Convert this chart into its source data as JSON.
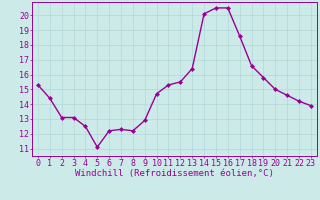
{
  "x": [
    0,
    1,
    2,
    3,
    4,
    5,
    6,
    7,
    8,
    9,
    10,
    11,
    12,
    13,
    14,
    15,
    16,
    17,
    18,
    19,
    20,
    21,
    22,
    23
  ],
  "y": [
    15.3,
    14.4,
    13.1,
    13.1,
    12.5,
    11.1,
    12.2,
    12.3,
    12.2,
    12.9,
    14.7,
    15.3,
    15.5,
    16.4,
    20.1,
    20.5,
    20.5,
    18.6,
    16.6,
    15.8,
    15.0,
    14.6,
    14.2,
    13.9
  ],
  "line_color": "#990099",
  "marker": "D",
  "marker_size": 2.0,
  "linewidth": 1.0,
  "xlabel": "Windchill (Refroidissement éolien,°C)",
  "xlabel_fontsize": 6.5,
  "xticks": [
    0,
    1,
    2,
    3,
    4,
    5,
    6,
    7,
    8,
    9,
    10,
    11,
    12,
    13,
    14,
    15,
    16,
    17,
    18,
    19,
    20,
    21,
    22,
    23
  ],
  "yticks": [
    11,
    12,
    13,
    14,
    15,
    16,
    17,
    18,
    19,
    20
  ],
  "ylim": [
    10.5,
    20.9
  ],
  "xlim": [
    -0.5,
    23.5
  ],
  "grid_color": "#b0d8d8",
  "bg_color": "#cceae8",
  "tick_fontsize": 6.0,
  "tick_color": "#990099",
  "label_color": "#990099",
  "spine_color": "#990099"
}
